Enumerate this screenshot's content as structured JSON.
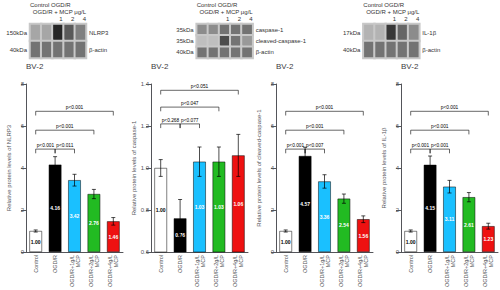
{
  "chart_data": [
    {
      "type": "bar",
      "title": "BV-2",
      "ylabel": "Relative protein levels of NLRP3",
      "categories": [
        "Control",
        "OGD/R",
        "OGD/R+1g/L\nMCP",
        "OGD/R+2g/L\nMCP",
        "OGD/R+4g/L\nMCP"
      ],
      "values": [
        1.0,
        4.16,
        3.42,
        2.76,
        1.46
      ],
      "errors": [
        0.05,
        0.38,
        0.28,
        0.22,
        0.18
      ],
      "colors": [
        "white",
        "black",
        "#1AC0FF",
        "#22BB22",
        "#EE1111"
      ],
      "ylim": [
        0,
        8
      ],
      "yticks": [
        0,
        2,
        4,
        6,
        8
      ],
      "grid": false,
      "data_labels": true,
      "value_labels": [
        "1.00",
        "4.16",
        "3.42",
        "2.76",
        "1.46"
      ],
      "brackets": [
        {
          "from": "Control",
          "to": "OGD/R",
          "y": 4.9,
          "text": "p<0.001"
        },
        {
          "from": "OGD/R",
          "to": "OGD/R+1g/L\nMCP",
          "y": 4.9,
          "text": "p<0.011"
        },
        {
          "from": "Control",
          "to": "OGD/R+2g/L\nMCP",
          "y": 5.8,
          "text": "p<0.001"
        },
        {
          "from": "Control",
          "to": "OGD/R+4g/L\nMCP",
          "y": 6.7,
          "text": "p<0.001"
        }
      ]
    },
    {
      "type": "bar",
      "title": "BV-2",
      "ylabel": "Relative protein levels of caspase-1",
      "categories": [
        "Control",
        "OGD/R",
        "OGD/R+1g/L\nMCP",
        "OGD/R+2g/L\nMCP",
        "OGD/R+4g/L\nMCP"
      ],
      "values": [
        1.0,
        0.76,
        1.03,
        1.03,
        1.06
      ],
      "errors": [
        0.04,
        0.09,
        0.07,
        0.07,
        0.1
      ],
      "colors": [
        "white",
        "black",
        "#1AC0FF",
        "#22BB22",
        "#EE1111"
      ],
      "ylim": [
        0.6,
        1.4
      ],
      "yticks": [
        0.6,
        0.8,
        {
          "value": 1.0,
          "label": "1.0"
        },
        1.2,
        1.4
      ],
      "grid": false,
      "data_labels": true,
      "value_labels": [
        "1.00",
        "0.76",
        "1.03",
        "1.03",
        "1.06"
      ],
      "brackets": [
        {
          "from": "Control",
          "to": "OGD/R",
          "y": 1.21,
          "text": "p<0.268"
        },
        {
          "from": "OGD/R",
          "to": "OGD/R+1g/L\nMCP",
          "y": 1.21,
          "text": "p<0.077"
        },
        {
          "from": "Control",
          "to": "OGD/R+2g/L\nMCP",
          "y": 1.29,
          "text": "p<0.047"
        },
        {
          "from": "Control",
          "to": "OGD/R+4g/L\nMCP",
          "y": 1.37,
          "text": "p<0.051"
        }
      ]
    },
    {
      "type": "bar",
      "title": "BV-2",
      "ylabel": "Relative protein levels of cleaved-caspase-1",
      "categories": [
        "Control",
        "OGD/R",
        "OGD/R+1g/L\nMCP",
        "OGD/R+2g/L\nMCP",
        "OGD/R+4g/L\nMCP"
      ],
      "values": [
        1.0,
        4.57,
        3.36,
        2.54,
        1.56
      ],
      "errors": [
        0.05,
        0.42,
        0.32,
        0.22,
        0.16
      ],
      "colors": [
        "white",
        "black",
        "#1AC0FF",
        "#22BB22",
        "#EE1111"
      ],
      "ylim": [
        0,
        8
      ],
      "yticks": [
        0,
        2,
        4,
        6,
        8
      ],
      "grid": false,
      "data_labels": true,
      "value_labels": [
        "1.00",
        "4.57",
        "3.36",
        "2.54",
        "1.56"
      ],
      "brackets": [
        {
          "from": "Control",
          "to": "OGD/R",
          "y": 4.9,
          "text": "p<0.001"
        },
        {
          "from": "OGD/R",
          "to": "OGD/R+1g/L\nMCP",
          "y": 4.9,
          "text": "p<0.007"
        },
        {
          "from": "Control",
          "to": "OGD/R+2g/L\nMCP",
          "y": 5.8,
          "text": "p<0.001"
        },
        {
          "from": "Control",
          "to": "OGD/R+4g/L\nMCP",
          "y": 6.7,
          "text": "p<0.001"
        }
      ]
    },
    {
      "type": "bar",
      "title": "BV-2",
      "ylabel": "Relative protein levels of IL-1β",
      "categories": [
        "Control",
        "OGD/R",
        "OGD/R+1g/L\nMCP",
        "OGD/R+2g/L\nMCP",
        "OGD/R+4g/L\nMCP"
      ],
      "values": [
        1.0,
        4.15,
        3.11,
        2.61,
        1.23
      ],
      "errors": [
        0.05,
        0.42,
        0.3,
        0.22,
        0.14
      ],
      "colors": [
        "white",
        "black",
        "#1AC0FF",
        "#22BB22",
        "#EE1111"
      ],
      "ylim": [
        0,
        8
      ],
      "yticks": [
        0,
        2,
        4,
        6,
        8
      ],
      "grid": false,
      "data_labels": true,
      "value_labels": [
        "1.00",
        "4.15",
        "3.11",
        "2.61",
        "1.23"
      ],
      "brackets": [
        {
          "from": "Control",
          "to": "OGD/R",
          "y": 4.9,
          "text": "p<0.001"
        },
        {
          "from": "OGD/R",
          "to": "OGD/R+1g/L\nMCP",
          "y": 4.9,
          "text": "p<0.001"
        },
        {
          "from": "Control",
          "to": "OGD/R+2g/L\nMCP",
          "y": 5.8,
          "text": "p<0.001"
        },
        {
          "from": "Control",
          "to": "OGD/R+4g/L\nMCP",
          "y": 6.7,
          "text": "p<0.001"
        }
      ]
    },
    {
      "type": "heatmap",
      "annotations": [
        "Control OGD/R",
        "OGD/R + MCP μg/L",
        "1     2     4"
      ],
      "rows": [
        "NLRP3",
        "β-actin"
      ],
      "kda_labels": [
        "150kDa",
        "40kDa"
      ],
      "cells": [
        [
          0.35,
          0.35,
          0.85,
          0.65,
          0.5
        ],
        [
          0.55,
          0.55,
          0.55,
          0.55,
          0.55
        ]
      ],
      "clim": [
        0,
        1
      ]
    },
    {
      "type": "heatmap",
      "annotations": [
        "Control OGD/R",
        "OGD/R + MCP μg/L",
        "1     2     4"
      ],
      "rows": [
        "caspase-1",
        "cleaved-caspase-1",
        "β-actin"
      ],
      "kda_labels": [
        "35kDa",
        "35kDa",
        "40kDa"
      ],
      "cells": [
        [
          0.45,
          0.45,
          0.55,
          0.55,
          0.55
        ],
        [
          0.25,
          0.25,
          0.7,
          0.55,
          0.4
        ],
        [
          0.55,
          0.55,
          0.55,
          0.55,
          0.55
        ]
      ],
      "clim": [
        0,
        1
      ]
    },
    {
      "type": "heatmap",
      "annotations": [
        "Control OGD/R",
        "OGD/R + MCP μg/L",
        "1     2     4"
      ],
      "rows": [
        "IL-1β",
        "β-actin"
      ],
      "kda_labels": [
        "17kDa",
        "40kDa"
      ],
      "cells": [
        [
          0.3,
          0.3,
          0.78,
          0.6,
          0.45
        ],
        [
          0.55,
          0.55,
          0.55,
          0.55,
          0.55
        ]
      ],
      "clim": [
        0,
        1
      ]
    }
  ]
}
